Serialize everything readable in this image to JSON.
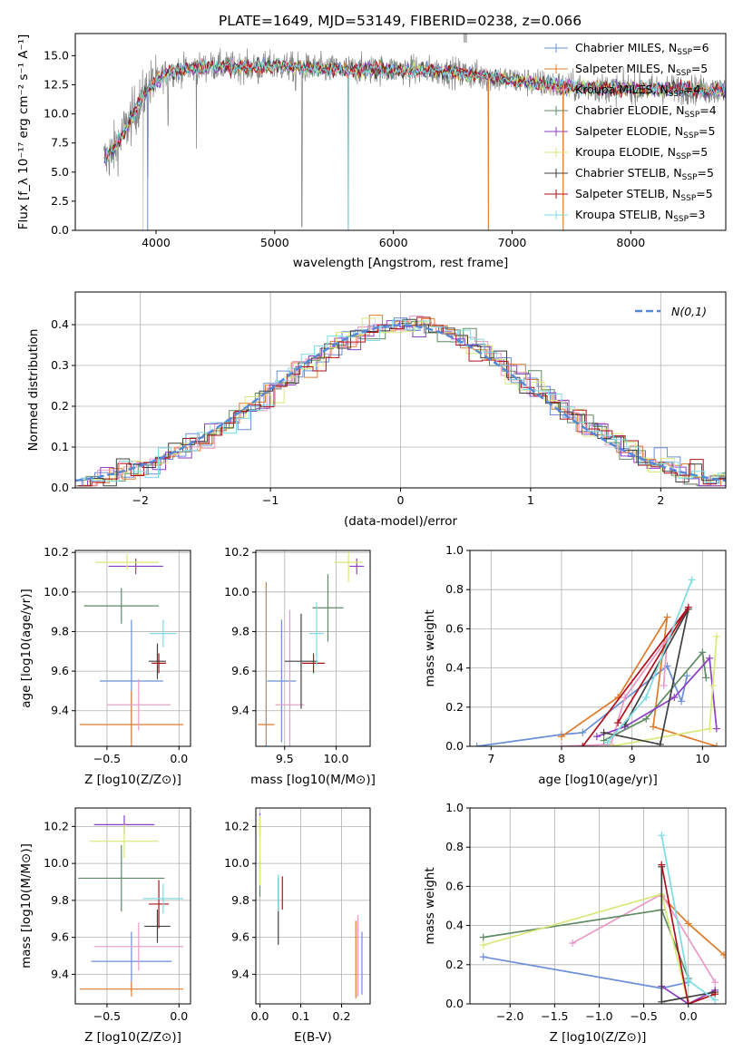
{
  "title": "PLATE=1649, MJD=53149, FIBERID=0238, z=0.066",
  "colors": [
    "#6b8fd8",
    "#e07b2b",
    "#e89ac4",
    "#5f8a63",
    "#8e3fc4",
    "#d8e87a",
    "#404040",
    "#b0101a",
    "#7fdbe3"
  ],
  "models": [
    {
      "label": "Chabrier MILES, N",
      "sub": "SSP",
      "suffix": "=6"
    },
    {
      "label": "Salpeter MILES, N",
      "sub": "SSP",
      "suffix": "=5"
    },
    {
      "label": "Kroupa MILES, N",
      "sub": "SSP",
      "suffix": "=4"
    },
    {
      "label": "Chabrier ELODIE, N",
      "sub": "SSP",
      "suffix": "=4"
    },
    {
      "label": "Salpeter ELODIE, N",
      "sub": "SSP",
      "suffix": "=5"
    },
    {
      "label": "Kroupa ELODIE, N",
      "sub": "SSP",
      "suffix": "=5"
    },
    {
      "label": "Chabrier STELIB, N",
      "sub": "SSP",
      "suffix": "=5"
    },
    {
      "label": "Salpeter STELIB, N",
      "sub": "SSP",
      "suffix": "=5"
    },
    {
      "label": "Kroupa STELIB, N",
      "sub": "SSP",
      "suffix": "=3"
    }
  ],
  "chart_data": [
    {
      "panel": "spectrum",
      "type": "line",
      "xlabel": "wavelength [Angstrom, rest frame]",
      "ylabel": "Flux [f_λ 10⁻¹⁷ erg cm⁻² s⁻¹ A⁻¹]",
      "xlim": [
        3320,
        8800
      ],
      "ylim": [
        0,
        16.9
      ],
      "xticks": [
        "4000",
        "5000",
        "6000",
        "7000",
        "8000"
      ],
      "yticks": [
        "0.0",
        "2.5",
        "5.0",
        "7.5",
        "10.0",
        "12.5",
        "15.0"
      ],
      "continuum": [
        [
          3560,
          6.0
        ],
        [
          3650,
          7.0
        ],
        [
          3750,
          8.8
        ],
        [
          3850,
          10.8
        ],
        [
          3950,
          12.4
        ],
        [
          4100,
          13.6
        ],
        [
          4300,
          13.9
        ],
        [
          4500,
          14.1
        ],
        [
          4800,
          14.0
        ],
        [
          5000,
          14.1
        ],
        [
          5500,
          13.8
        ],
        [
          6000,
          13.8
        ],
        [
          6500,
          13.6
        ],
        [
          7000,
          12.9
        ],
        [
          7500,
          12.3
        ],
        [
          8000,
          12.2
        ],
        [
          8500,
          12.1
        ],
        [
          8800,
          12.0
        ]
      ],
      "features": [
        [
          3890,
          0.2
        ],
        [
          3930,
          4.6
        ],
        [
          4101,
          9.0
        ],
        [
          4340,
          7.0
        ],
        [
          4861,
          12.6
        ],
        [
          5175,
          12.0
        ],
        [
          5230,
          0.3
        ],
        [
          5620,
          0.0
        ],
        [
          6563,
          12.4
        ],
        [
          6800,
          0.0
        ],
        [
          7430,
          0.0
        ]
      ]
    },
    {
      "panel": "residuals",
      "type": "histogram",
      "xlabel": "(data-model)/error",
      "ylabel": "Normed distribution",
      "xlim": [
        -2.5,
        2.5
      ],
      "ylim": [
        0,
        0.48
      ],
      "xticks": [
        "−2",
        "−1",
        "0",
        "1",
        "2"
      ],
      "yticks": [
        "0.0",
        "0.1",
        "0.2",
        "0.3",
        "0.4"
      ],
      "reference_label": "N(0,1)",
      "bin_width": 0.1
    },
    {
      "panel": "age-vs-Z",
      "type": "scatter",
      "xlabel": "Z [log10(Z/Z⊙)]",
      "ylabel": "age [log10(age/yr)]",
      "xlim": [
        -0.72,
        0.08
      ],
      "ylim": [
        9.22,
        10.21
      ],
      "xticks": [
        "−0.5",
        "0.0"
      ],
      "yticks": [
        "9.4",
        "9.6",
        "9.8",
        "10.0",
        "10.2"
      ],
      "points": [
        {
          "x": -0.33,
          "y": 9.55,
          "xerr": 0.22,
          "yerr": 0.31
        },
        {
          "x": -0.33,
          "y": 9.33,
          "xerr": 0.36,
          "yerr": 0.17
        },
        {
          "x": -0.28,
          "y": 9.43,
          "xerr": 0.22,
          "yerr": 0.13
        },
        {
          "x": -0.4,
          "y": 9.93,
          "xerr": 0.26,
          "yerr": 0.09
        },
        {
          "x": -0.3,
          "y": 10.13,
          "xerr": 0.19,
          "yerr": 0.04
        },
        {
          "x": -0.36,
          "y": 10.15,
          "xerr": 0.22,
          "yerr": 0.04
        },
        {
          "x": -0.15,
          "y": 9.65,
          "xerr": 0.06,
          "yerr": 0.09
        },
        {
          "x": -0.14,
          "y": 9.64,
          "xerr": 0.05,
          "yerr": 0.05
        },
        {
          "x": -0.11,
          "y": 9.79,
          "xerr": 0.09,
          "yerr": 0.07
        }
      ]
    },
    {
      "panel": "age-vs-mass",
      "type": "scatter",
      "xlabel": "mass [log10(M/M⊙)]",
      "ylabel": "",
      "xlim": [
        9.22,
        10.33
      ],
      "ylim": [
        9.22,
        10.21
      ],
      "xticks": [
        "9.5",
        "10.0"
      ],
      "yticks": [
        "9.4",
        "9.6",
        "9.8",
        "10.0",
        "10.2"
      ],
      "points": [
        {
          "x": 9.47,
          "y": 9.55,
          "xerr": 0.14,
          "yerr": 0.31
        },
        {
          "x": 9.32,
          "y": 9.33,
          "xerr": 0.08,
          "yerr": 0.72
        },
        {
          "x": 9.55,
          "y": 9.43,
          "xerr": 0.14,
          "yerr": 0.48
        },
        {
          "x": 9.92,
          "y": 9.92,
          "xerr": 0.15,
          "yerr": 0.17
        },
        {
          "x": 10.2,
          "y": 10.13,
          "xerr": 0.07,
          "yerr": 0.04
        },
        {
          "x": 10.12,
          "y": 10.15,
          "xerr": 0.14,
          "yerr": 0.1
        },
        {
          "x": 9.66,
          "y": 9.65,
          "xerr": 0.16,
          "yerr": 0.24
        },
        {
          "x": 9.78,
          "y": 9.64,
          "xerr": 0.11,
          "yerr": 0.05
        },
        {
          "x": 9.81,
          "y": 9.79,
          "xerr": 0.07,
          "yerr": 0.16
        }
      ]
    },
    {
      "panel": "weight-vs-age",
      "type": "line",
      "xlabel": "age [log10(age/yr)]",
      "ylabel": "mass weight",
      "xlim": [
        6.7,
        10.33
      ],
      "ylim": [
        0,
        1.0
      ],
      "xticks": [
        "7",
        "8",
        "9",
        "10"
      ],
      "yticks": [
        "0.0",
        "0.2",
        "0.4",
        "0.6",
        "0.8",
        "1.0"
      ],
      "series": [
        {
          "x": [
            6.8,
            8.0,
            8.3,
            9.5,
            9.7,
            9.78
          ],
          "y": [
            0.0,
            0.06,
            0.07,
            0.41,
            0.23,
            0.36
          ]
        },
        {
          "x": [
            8.0,
            8.8,
            9.5,
            9.3,
            10.2
          ],
          "y": [
            0.05,
            0.25,
            0.66,
            0.1,
            0.0
          ]
        },
        {
          "x": [
            8.0,
            8.7,
            8.9,
            9.5,
            9.45
          ],
          "y": [
            0.0,
            0.01,
            0.25,
            0.55,
            0.31
          ]
        },
        {
          "x": [
            8.6,
            9.2,
            10.0,
            10.05
          ],
          "y": [
            0.03,
            0.14,
            0.48,
            0.35
          ]
        },
        {
          "x": [
            8.5,
            8.9,
            9.6,
            10.1,
            10.2
          ],
          "y": [
            0.05,
            0.1,
            0.25,
            0.45,
            0.09
          ]
        },
        {
          "x": [
            8.7,
            10.1,
            10.2,
            10.15
          ],
          "y": [
            0.0,
            0.09,
            0.56,
            0.31
          ]
        },
        {
          "x": [
            8.6,
            9.4,
            9.8,
            8.9
          ],
          "y": [
            0.07,
            0.01,
            0.7,
            0.11
          ]
        },
        {
          "x": [
            8.3,
            9.8,
            8.8
          ],
          "y": [
            0.0,
            0.71,
            0.12
          ]
        },
        {
          "x": [
            8.65,
            9.2,
            9.85
          ],
          "y": [
            0.02,
            0.25,
            0.85
          ]
        }
      ]
    },
    {
      "panel": "mass-vs-Z",
      "type": "scatter",
      "xlabel": "Z [log10(Z/Z⊙)]",
      "ylabel": "mass [log10(M/M⊙)]",
      "xlim": [
        -0.72,
        0.08
      ],
      "ylim": [
        9.24,
        10.3
      ],
      "xticks": [
        "−0.5",
        "0.0"
      ],
      "yticks": [
        "9.4",
        "9.6",
        "9.8",
        "10.0",
        "10.2"
      ],
      "points": [
        {
          "x": -0.33,
          "y": 9.47,
          "xerr": 0.28,
          "yerr": 0.16
        },
        {
          "x": -0.33,
          "y": 9.32,
          "xerr": 0.36,
          "yerr": 0.04
        },
        {
          "x": -0.28,
          "y": 9.55,
          "xerr": 0.31,
          "yerr": 0.13
        },
        {
          "x": -0.4,
          "y": 9.92,
          "xerr": 0.3,
          "yerr": 0.18
        },
        {
          "x": -0.38,
          "y": 10.21,
          "xerr": 0.21,
          "yerr": 0.05
        },
        {
          "x": -0.38,
          "y": 10.12,
          "xerr": 0.24,
          "yerr": 0.09
        },
        {
          "x": -0.15,
          "y": 9.66,
          "xerr": 0.09,
          "yerr": 0.09
        },
        {
          "x": -0.14,
          "y": 9.78,
          "xerr": 0.07,
          "yerr": 0.13
        },
        {
          "x": -0.11,
          "y": 9.81,
          "xerr": 0.14,
          "yerr": 0.08
        }
      ]
    },
    {
      "panel": "mass-vs-ebv",
      "type": "scatter",
      "xlabel": "E(B-V)",
      "ylabel": "",
      "xlim": [
        -0.01,
        0.27
      ],
      "ylim": [
        9.24,
        10.3
      ],
      "xticks": [
        "0.0",
        "0.1",
        "0.2"
      ],
      "yticks": [
        "9.4",
        "9.6",
        "9.8",
        "10.0",
        "10.2"
      ],
      "points": [
        {
          "x": 0.25,
          "y": 9.46,
          "xerr": 0.0,
          "yerr": 0.17
        },
        {
          "x": 0.235,
          "y": 9.48,
          "xerr": 0.0,
          "yerr": 0.21
        },
        {
          "x": 0.24,
          "y": 9.5,
          "xerr": 0.0,
          "yerr": 0.22
        },
        {
          "x": 0.0,
          "y": 9.92,
          "xerr": 0.0,
          "yerr": 0.1
        },
        {
          "x": 0.0,
          "y": 10.21,
          "xerr": 0.0,
          "yerr": 0.06
        },
        {
          "x": 0.0,
          "y": 10.07,
          "xerr": 0.0,
          "yerr": 0.19
        },
        {
          "x": 0.045,
          "y": 9.74,
          "xerr": 0.0,
          "yerr": 0.18
        },
        {
          "x": 0.055,
          "y": 9.84,
          "xerr": 0.0,
          "yerr": 0.09
        },
        {
          "x": 0.045,
          "y": 9.84,
          "xerr": 0.0,
          "yerr": 0.1
        }
      ]
    },
    {
      "panel": "weight-vs-Z",
      "type": "line",
      "xlabel": "Z [log10(Z/Z⊙)]",
      "ylabel": "mass weight",
      "xlim": [
        -2.45,
        0.42
      ],
      "ylim": [
        0,
        1.0
      ],
      "xticks": [
        "−2.0",
        "−1.5",
        "−1.0",
        "−0.5",
        "0.0"
      ],
      "yticks": [
        "0.0",
        "0.2",
        "0.4",
        "0.6",
        "0.8",
        "1.0"
      ],
      "series": [
        {
          "x": [
            -2.3,
            -0.3,
            0.0
          ],
          "y": [
            0.24,
            0.08,
            0.11
          ]
        },
        {
          "x": [
            -0.3,
            0.0,
            0.4
          ],
          "y": [
            0.55,
            0.41,
            0.25
          ]
        },
        {
          "x": [
            -1.3,
            -0.3,
            0.3
          ],
          "y": [
            0.31,
            0.56,
            0.11
          ]
        },
        {
          "x": [
            -2.3,
            -0.3,
            0.0
          ],
          "y": [
            0.34,
            0.48,
            0.13
          ]
        },
        {
          "x": [
            -0.3,
            0.0,
            0.3
          ],
          "y": [
            0.09,
            0.0,
            0.07
          ]
        },
        {
          "x": [
            -2.3,
            -0.3,
            0.0
          ],
          "y": [
            0.3,
            0.56,
            0.0
          ]
        },
        {
          "x": [
            -0.3,
            -0.3,
            0.3
          ],
          "y": [
            0.7,
            0.01,
            0.06
          ]
        },
        {
          "x": [
            -0.3,
            0.0,
            0.3
          ],
          "y": [
            0.71,
            0.0,
            0.05
          ]
        },
        {
          "x": [
            -0.3,
            0.0,
            0.3
          ],
          "y": [
            0.86,
            0.12,
            0.02
          ]
        }
      ]
    }
  ]
}
